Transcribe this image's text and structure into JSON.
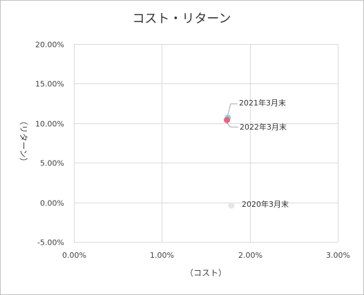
{
  "chart_data": {
    "type": "scatter",
    "title": "コスト・リターン",
    "xlabel": "（コスト）",
    "ylabel": "（リターン）",
    "xlim": [
      0,
      3
    ],
    "ylim": [
      -5,
      20
    ],
    "x_ticks": [
      "0.00%",
      "1.00%",
      "2.00%",
      "3.00%"
    ],
    "y_ticks": [
      "20.00%",
      "15.00%",
      "10.00%",
      "5.00%",
      "0.00%",
      "-5.00%"
    ],
    "grid": true,
    "legend": "none",
    "points": [
      {
        "label": "2020年3月末",
        "x": 1.79,
        "y": -0.4,
        "color": "#e6e6e6"
      },
      {
        "label": "2021年3月末",
        "x": 1.75,
        "y": 10.7,
        "color": "#8ec8e8"
      },
      {
        "label": "2022年3月末",
        "x": 1.74,
        "y": 10.4,
        "color": "#e8637e"
      }
    ]
  }
}
